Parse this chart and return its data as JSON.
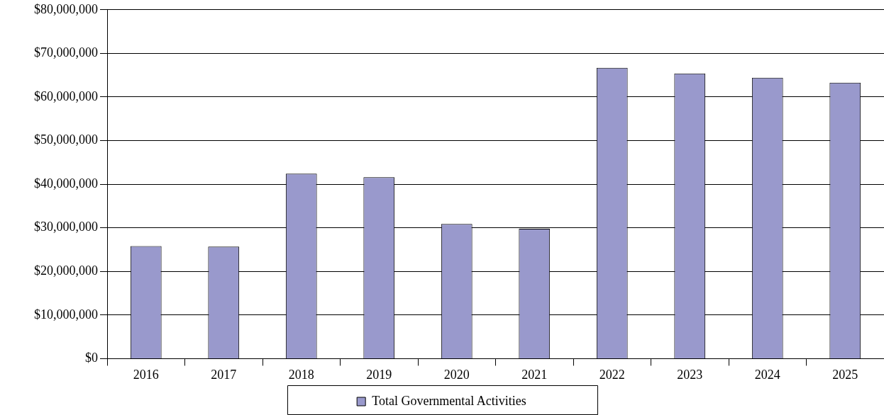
{
  "chart_data": {
    "type": "bar",
    "categories": [
      "2016",
      "2017",
      "2018",
      "2019",
      "2020",
      "2021",
      "2022",
      "2023",
      "2024",
      "2025"
    ],
    "series": [
      {
        "name": "Total Governmental Activities",
        "color": "#9999cc",
        "values": [
          25800000,
          25700000,
          42400000,
          41600000,
          30900000,
          29800000,
          66700000,
          65400000,
          64400000,
          63300000
        ]
      }
    ],
    "ylim": [
      0,
      80000000
    ],
    "yticks": [
      {
        "value": 0,
        "label": "$0"
      },
      {
        "value": 10000000,
        "label": "$10,000,000"
      },
      {
        "value": 20000000,
        "label": "$20,000,000"
      },
      {
        "value": 30000000,
        "label": "$30,000,000"
      },
      {
        "value": 40000000,
        "label": "$40,000,000"
      },
      {
        "value": 50000000,
        "label": "$50,000,000"
      },
      {
        "value": 60000000,
        "label": "$60,000,000"
      },
      {
        "value": 70000000,
        "label": "$70,000,000"
      },
      {
        "value": 80000000,
        "label": "$80,000,000"
      }
    ],
    "grid": "y",
    "legend": "bottom"
  }
}
